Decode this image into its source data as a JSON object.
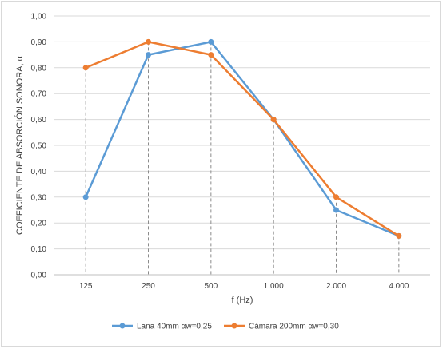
{
  "chart_data": {
    "type": "line",
    "title": "",
    "xlabel": "f (Hz)",
    "ylabel": "COEFICIENTE DE ABSORCIÓN SONORA, α",
    "categories": [
      "125",
      "250",
      "500",
      "1.000",
      "2.000",
      "4.000"
    ],
    "ylim": [
      0,
      1
    ],
    "yticks": [
      "0,00",
      "0,10",
      "0,20",
      "0,30",
      "0,40",
      "0,50",
      "0,60",
      "0,70",
      "0,80",
      "0,90",
      "1,00"
    ],
    "grid": "horizontal",
    "legend": "bottom",
    "series": [
      {
        "name": "Lana 40mm αw=0,25",
        "color": "#5b9bd5",
        "values": [
          0.3,
          0.85,
          0.9,
          0.6,
          0.25,
          0.15
        ]
      },
      {
        "name": "Cámara 200mm αw=0,30",
        "color": "#ed7d31",
        "values": [
          0.8,
          0.9,
          0.85,
          0.6,
          0.3,
          0.15
        ]
      }
    ]
  }
}
